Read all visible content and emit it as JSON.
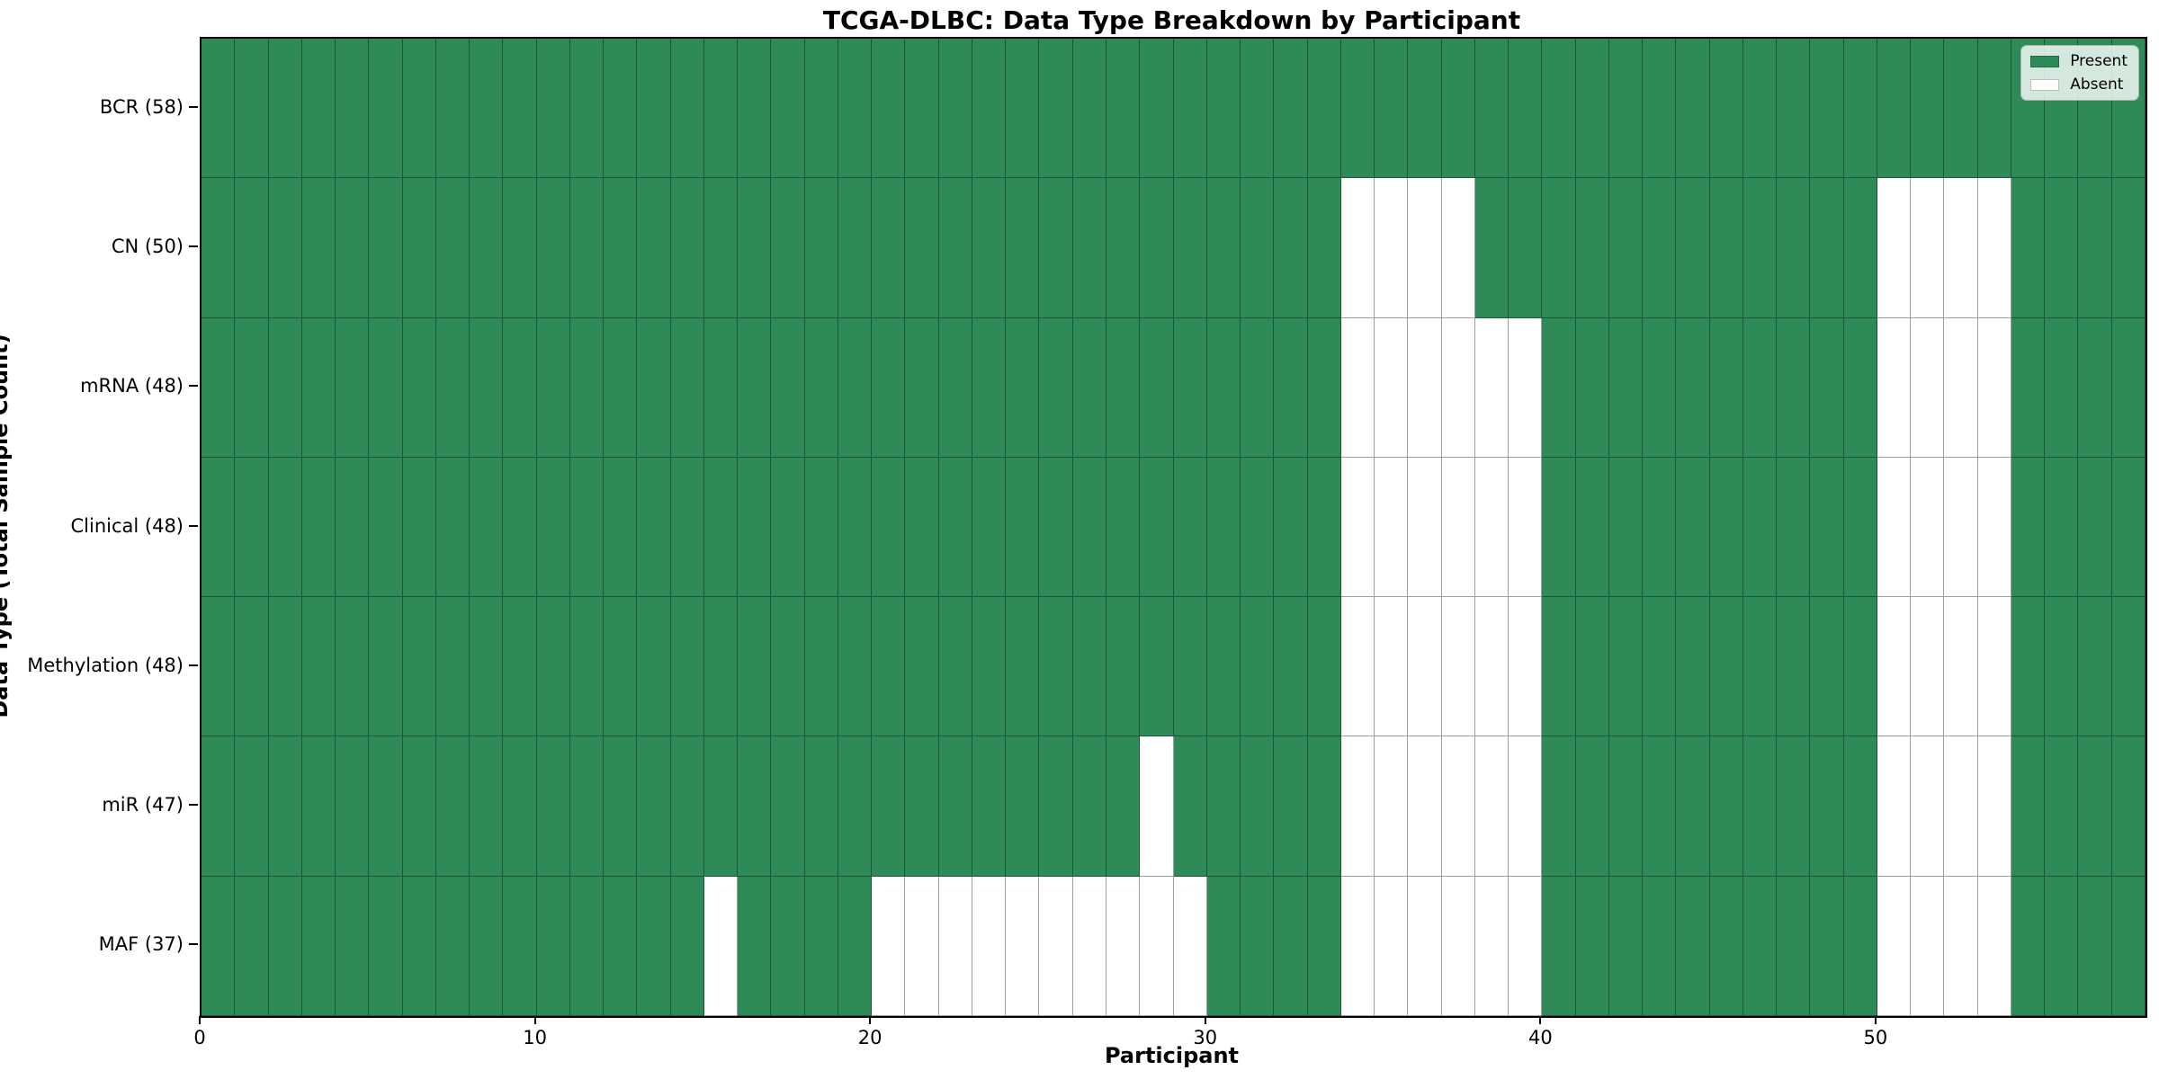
{
  "colors": {
    "present": "#2e8b57",
    "absent": "#ffffff",
    "grid_line": "rgba(0,0,0,0.38)",
    "plot_border": "#000000"
  },
  "legend": {
    "present_label": "Present",
    "absent_label": "Absent"
  },
  "chart_data": {
    "type": "heatmap",
    "title": "TCGA-DLBC: Data Type Breakdown by Participant",
    "xlabel": "Participant",
    "ylabel": "Data Type (Total Sample Count)",
    "n_participants": 58,
    "x_ticks": [
      0,
      10,
      20,
      30,
      40,
      50
    ],
    "xlim": [
      0,
      58
    ],
    "legend_position": "upper right",
    "grid": true,
    "rows": [
      {
        "label": "BCR (58)",
        "total": 58,
        "absent": []
      },
      {
        "label": "CN (50)",
        "total": 50,
        "absent": [
          34,
          35,
          36,
          37,
          50,
          51,
          52,
          53
        ]
      },
      {
        "label": "mRNA (48)",
        "total": 48,
        "absent": [
          34,
          35,
          36,
          37,
          38,
          39,
          50,
          51,
          52,
          53
        ]
      },
      {
        "label": "Clinical (48)",
        "total": 48,
        "absent": [
          34,
          35,
          36,
          37,
          38,
          39,
          50,
          51,
          52,
          53
        ]
      },
      {
        "label": "Methylation (48)",
        "total": 48,
        "absent": [
          34,
          35,
          36,
          37,
          38,
          39,
          50,
          51,
          52,
          53
        ]
      },
      {
        "label": "miR (47)",
        "total": 47,
        "absent": [
          28,
          34,
          35,
          36,
          37,
          38,
          39,
          50,
          51,
          52,
          53
        ]
      },
      {
        "label": "MAF (37)",
        "total": 37,
        "absent": [
          15,
          20,
          21,
          22,
          23,
          24,
          25,
          26,
          27,
          28,
          29,
          34,
          35,
          36,
          37,
          38,
          39,
          50,
          51,
          52,
          53
        ]
      }
    ]
  }
}
